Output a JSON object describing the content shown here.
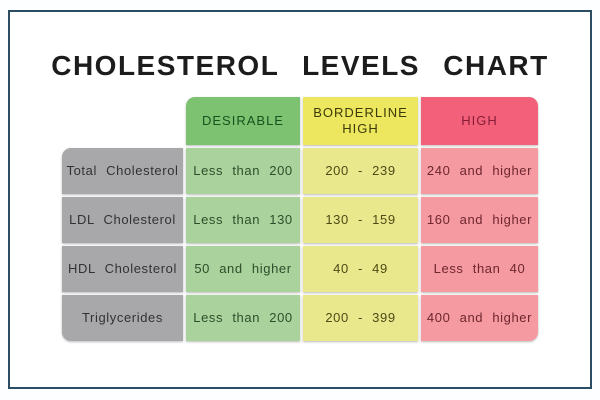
{
  "title": "CHOLESTEROL  LEVELS  CHART",
  "colors": {
    "frame_border": "#2b4d63",
    "header_desirable_bg": "#7cc271",
    "header_borderline_bg": "#ece75e",
    "header_high_bg": "#f26179",
    "row_label_bg": "#a8a8ab",
    "cell_desirable_bg": "#aad29d",
    "cell_borderline_bg": "#eae88c",
    "cell_high_bg": "#f59aa0"
  },
  "chart_data": {
    "type": "table",
    "title": "CHOLESTEROL LEVELS CHART",
    "column_headers": [
      "DESIRABLE",
      "BORDERLINE HIGH",
      "HIGH"
    ],
    "row_headers": [
      "Total Cholesterol",
      "LDL Cholesterol",
      "HDL Cholesterol",
      "Triglycerides"
    ],
    "rows": [
      [
        "Less than 200",
        "200 - 239",
        "240 and higher"
      ],
      [
        "Less than 130",
        "130 - 159",
        "160 and higher"
      ],
      [
        "50 and higher",
        "40 - 49",
        "Less than 40"
      ],
      [
        "Less than 200",
        "200 - 399",
        "400 and higher"
      ]
    ]
  }
}
